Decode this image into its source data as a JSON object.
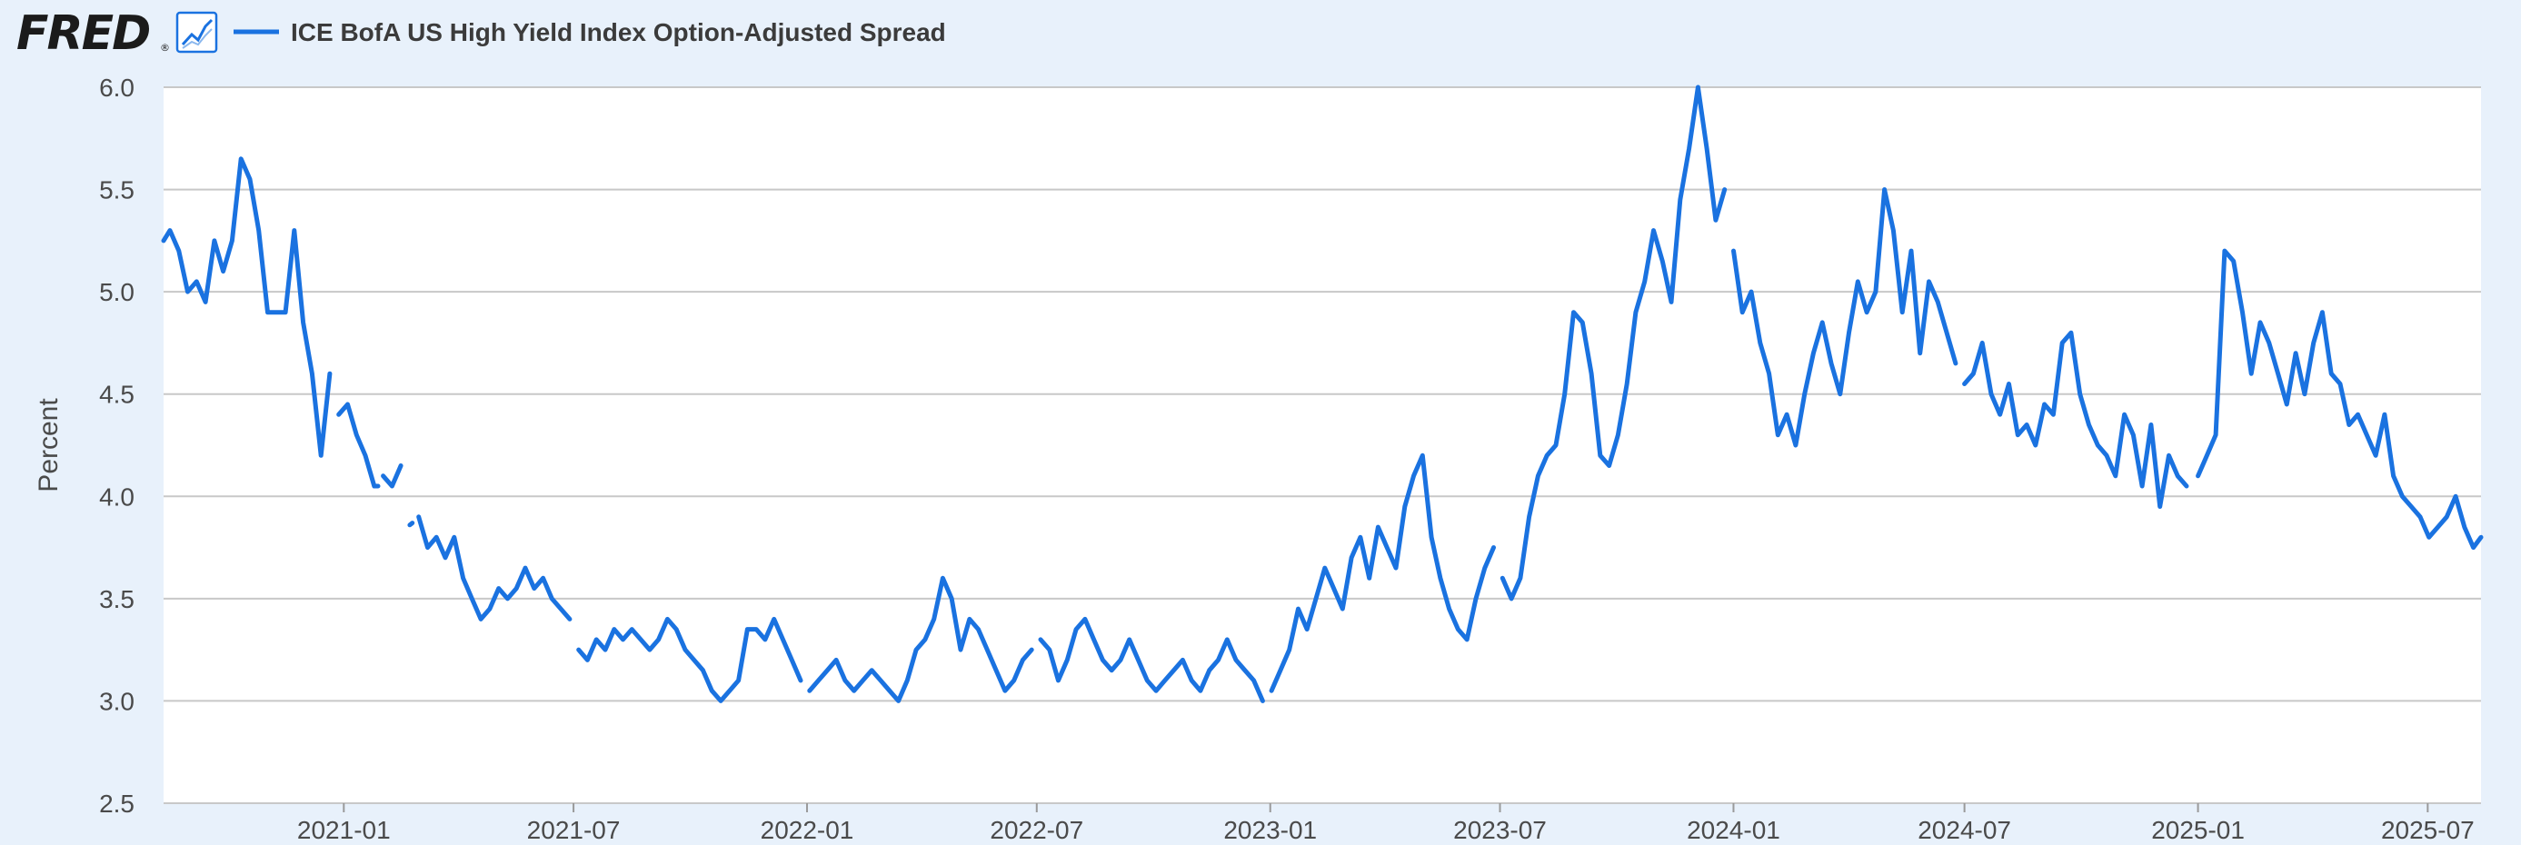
{
  "header": {
    "brand": "FRED",
    "brand_registered": "®",
    "chart_icon": "line-chart-icon"
  },
  "colors": {
    "page_background": "#e8f1fb",
    "plot_background": "#ffffff",
    "gridline": "#c8c8c8",
    "series": "#1a72e0",
    "text": "#4a4a4a",
    "brand": "#1b1b1b"
  },
  "chart_data": {
    "type": "line",
    "title": "",
    "xlabel": "",
    "ylabel": "Percent",
    "ylim": [
      2.5,
      6.0
    ],
    "yticks": [
      "2.5",
      "3.0",
      "3.5",
      "4.0",
      "4.5",
      "5.0",
      "5.5",
      "6.0"
    ],
    "xlim": [
      "2020-08-12",
      "2025-08-12"
    ],
    "xticks": [
      "2021-01",
      "2021-07",
      "2022-01",
      "2022-07",
      "2023-01",
      "2023-07",
      "2024-01",
      "2024-07",
      "2025-01",
      "2025-07"
    ],
    "grid": true,
    "legend_position": "top-left",
    "series": [
      {
        "name": "ICE BofA US High Yield Index Option-Adjusted Spread",
        "color": "#1a72e0",
        "segments": [
          {
            "x": [
              "2020-08-12",
              "2020-08-17",
              "2020-08-24",
              "2020-08-31",
              "2020-09-07",
              "2020-09-14",
              "2020-09-21",
              "2020-09-28",
              "2020-10-05",
              "2020-10-12",
              "2020-10-19",
              "2020-10-26",
              "2020-11-02",
              "2020-11-09",
              "2020-11-16",
              "2020-11-23",
              "2020-11-30",
              "2020-12-07",
              "2020-12-14",
              "2020-12-21"
            ],
            "y": [
              5.25,
              5.3,
              5.2,
              5.0,
              5.05,
              4.95,
              5.25,
              5.1,
              5.25,
              5.65,
              5.55,
              5.3,
              4.9,
              4.9,
              4.9,
              5.3,
              4.85,
              4.6,
              4.2,
              4.6
            ]
          },
          {
            "x": [
              "2020-12-28",
              "2021-01-04",
              "2021-01-11",
              "2021-01-18",
              "2021-01-25",
              "2021-01-28"
            ],
            "y": [
              4.4,
              4.45,
              4.3,
              4.2,
              4.05,
              4.05
            ]
          },
          {
            "x": [
              "2021-02-01",
              "2021-02-08",
              "2021-02-15"
            ],
            "y": [
              4.1,
              4.05,
              4.15
            ]
          },
          {
            "x": [
              "2021-02-22",
              "2021-02-24"
            ],
            "y": [
              3.86,
              3.87
            ]
          },
          {
            "x": [
              "2021-03-01",
              "2021-03-08",
              "2021-03-15",
              "2021-03-22",
              "2021-03-29",
              "2021-04-05",
              "2021-04-12",
              "2021-04-19",
              "2021-04-26",
              "2021-05-03",
              "2021-05-10",
              "2021-05-17",
              "2021-05-24",
              "2021-05-31",
              "2021-06-07",
              "2021-06-14",
              "2021-06-21",
              "2021-06-28"
            ],
            "y": [
              3.9,
              3.75,
              3.8,
              3.7,
              3.8,
              3.6,
              3.5,
              3.4,
              3.45,
              3.55,
              3.5,
              3.55,
              3.65,
              3.55,
              3.6,
              3.5,
              3.45,
              3.4
            ]
          },
          {
            "x": [
              "2021-07-05",
              "2021-07-12",
              "2021-07-19",
              "2021-07-26",
              "2021-08-02",
              "2021-08-09",
              "2021-08-16",
              "2021-08-23",
              "2021-08-30",
              "2021-09-06",
              "2021-09-13",
              "2021-09-20",
              "2021-09-27",
              "2021-10-04",
              "2021-10-11",
              "2021-10-18",
              "2021-10-25",
              "2021-11-01",
              "2021-11-08",
              "2021-11-15",
              "2021-11-22",
              "2021-11-29",
              "2021-12-06",
              "2021-12-13",
              "2021-12-20",
              "2021-12-27"
            ],
            "y": [
              3.25,
              3.2,
              3.3,
              3.25,
              3.35,
              3.3,
              3.35,
              3.3,
              3.25,
              3.3,
              3.4,
              3.35,
              3.25,
              3.2,
              3.15,
              3.05,
              3.0,
              3.05,
              3.1,
              3.35,
              3.35,
              3.3,
              3.4,
              3.3,
              3.2,
              3.1
            ]
          },
          {
            "x": [
              "2022-01-03",
              "2022-01-10",
              "2022-01-17",
              "2022-01-24",
              "2022-01-31",
              "2022-02-07",
              "2022-02-14",
              "2022-02-21",
              "2022-02-28",
              "2022-03-07",
              "2022-03-14",
              "2022-03-21",
              "2022-03-28",
              "2022-04-04",
              "2022-04-11",
              "2022-04-18",
              "2022-04-25",
              "2022-05-02",
              "2022-05-09",
              "2022-05-16",
              "2022-05-23",
              "2022-05-30",
              "2022-06-06",
              "2022-06-13",
              "2022-06-20",
              "2022-06-27"
            ],
            "y": [
              3.05,
              3.1,
              3.15,
              3.2,
              3.1,
              3.05,
              3.1,
              3.15,
              3.1,
              3.05,
              3.0,
              3.1,
              3.25,
              3.3,
              3.4,
              3.6,
              3.5,
              3.25,
              3.4,
              3.35,
              3.25,
              3.15,
              3.05,
              3.1,
              3.2,
              3.25
            ]
          },
          {
            "x": [
              "2022-07-04",
              "2022-07-11",
              "2022-07-18",
              "2022-07-25",
              "2022-08-01",
              "2022-08-08",
              "2022-08-15",
              "2022-08-22",
              "2022-08-29",
              "2022-09-05",
              "2022-09-12",
              "2022-09-19",
              "2022-09-26",
              "2022-10-03",
              "2022-10-10",
              "2022-10-17",
              "2022-10-24",
              "2022-10-31",
              "2022-11-07",
              "2022-11-14",
              "2022-11-21",
              "2022-11-28",
              "2022-12-05",
              "2022-12-12",
              "2022-12-19",
              "2022-12-26"
            ],
            "y": [
              3.3,
              3.25,
              3.1,
              3.2,
              3.35,
              3.4,
              3.3,
              3.2,
              3.15,
              3.2,
              3.3,
              3.2,
              3.1,
              3.05,
              3.1,
              3.15,
              3.2,
              3.1,
              3.05,
              3.15,
              3.2,
              3.3,
              3.2,
              3.15,
              3.1,
              3.0
            ]
          },
          {
            "x": [
              "2023-01-02",
              "2023-01-09",
              "2023-01-16",
              "2023-01-23",
              "2023-01-30",
              "2023-02-06",
              "2023-02-13",
              "2023-02-20",
              "2023-02-27",
              "2023-03-06",
              "2023-03-13",
              "2023-03-20",
              "2023-03-27",
              "2023-04-03",
              "2023-04-10",
              "2023-04-17",
              "2023-04-24",
              "2023-05-01",
              "2023-05-08",
              "2023-05-15",
              "2023-05-22",
              "2023-05-29",
              "2023-06-05",
              "2023-06-12",
              "2023-06-19",
              "2023-06-26"
            ],
            "y": [
              3.05,
              3.15,
              3.25,
              3.45,
              3.35,
              3.5,
              3.65,
              3.55,
              3.45,
              3.7,
              3.8,
              3.6,
              3.85,
              3.75,
              3.65,
              3.95,
              4.1,
              4.2,
              3.8,
              3.6,
              3.45,
              3.35,
              3.3,
              3.5,
              3.65,
              3.75
            ]
          },
          {
            "x": [
              "2023-07-03",
              "2023-07-10",
              "2023-07-17",
              "2023-07-24",
              "2023-07-31",
              "2023-08-07",
              "2023-08-14",
              "2023-08-21",
              "2023-08-28",
              "2023-09-04",
              "2023-09-11",
              "2023-09-18",
              "2023-09-25",
              "2023-10-02",
              "2023-10-09",
              "2023-10-16",
              "2023-10-23",
              "2023-10-30",
              "2023-11-06",
              "2023-11-13",
              "2023-11-20",
              "2023-11-27",
              "2023-12-04",
              "2023-12-11",
              "2023-12-18",
              "2023-12-25"
            ],
            "y": [
              3.6,
              3.5,
              3.6,
              3.9,
              4.1,
              4.2,
              4.25,
              4.5,
              4.9,
              4.85,
              4.6,
              4.2,
              4.15,
              4.3,
              4.55,
              4.9,
              5.05,
              5.3,
              5.15,
              4.95,
              5.45,
              5.7,
              6.0,
              5.7,
              5.35,
              5.5
            ]
          },
          {
            "x": [
              "2024-01-01",
              "2024-01-08",
              "2024-01-15",
              "2024-01-22",
              "2024-01-29",
              "2024-02-05",
              "2024-02-12",
              "2024-02-19",
              "2024-02-26",
              "2024-03-04",
              "2024-03-11",
              "2024-03-18",
              "2024-03-25",
              "2024-04-01",
              "2024-04-08",
              "2024-04-15",
              "2024-04-22",
              "2024-04-29",
              "2024-05-06",
              "2024-05-13",
              "2024-05-20",
              "2024-05-27",
              "2024-06-03",
              "2024-06-10",
              "2024-06-17",
              "2024-06-24"
            ],
            "y": [
              5.2,
              4.9,
              5.0,
              4.75,
              4.6,
              4.3,
              4.4,
              4.25,
              4.5,
              4.7,
              4.85,
              4.65,
              4.5,
              4.8,
              5.05,
              4.9,
              5.0,
              5.5,
              5.3,
              4.9,
              5.2,
              4.7,
              5.05,
              4.95,
              4.8,
              4.65
            ]
          },
          {
            "x": [
              "2024-07-01",
              "2024-07-08",
              "2024-07-15",
              "2024-07-22",
              "2024-07-29",
              "2024-08-05",
              "2024-08-12",
              "2024-08-19",
              "2024-08-26",
              "2024-09-02",
              "2024-09-09",
              "2024-09-16",
              "2024-09-23",
              "2024-09-30",
              "2024-10-07",
              "2024-10-14",
              "2024-10-21",
              "2024-10-28",
              "2024-11-04",
              "2024-11-11",
              "2024-11-18",
              "2024-11-25",
              "2024-12-02",
              "2024-12-09",
              "2024-12-16",
              "2024-12-23"
            ],
            "y": [
              4.55,
              4.6,
              4.75,
              4.5,
              4.4,
              4.55,
              4.3,
              4.35,
              4.25,
              4.45,
              4.4,
              4.75,
              4.8,
              4.5,
              4.35,
              4.25,
              4.2,
              4.1,
              4.4,
              4.3,
              4.05,
              4.35,
              3.95,
              4.2,
              4.1,
              4.05
            ]
          },
          {
            "x": [
              "2025-01-01",
              "2025-01-08",
              "2025-01-15",
              "2025-01-22",
              "2025-01-29",
              "2025-02-05",
              "2025-02-12",
              "2025-02-19",
              "2025-02-26",
              "2025-03-05",
              "2025-03-12",
              "2025-03-19",
              "2025-03-26",
              "2025-04-02",
              "2025-04-09",
              "2025-04-16",
              "2025-04-23",
              "2025-04-30",
              "2025-05-07",
              "2025-05-14",
              "2025-05-21",
              "2025-05-28",
              "2025-06-04",
              "2025-06-11",
              "2025-06-18",
              "2025-06-25",
              "2025-07-02",
              "2025-07-09",
              "2025-07-16",
              "2025-07-23",
              "2025-07-30",
              "2025-08-06",
              "2025-08-12"
            ],
            "y": [
              4.1,
              4.2,
              4.3,
              5.2,
              5.15,
              4.9,
              4.6,
              4.85,
              4.75,
              4.6,
              4.45,
              4.7,
              4.5,
              4.75,
              4.9,
              4.6,
              4.55,
              4.35,
              4.4,
              4.3,
              4.2,
              4.4,
              4.1,
              4.0,
              3.95,
              3.9,
              3.8,
              3.85,
              3.9,
              4.0,
              3.85,
              3.75,
              3.8
            ]
          }
        ]
      }
    ]
  }
}
